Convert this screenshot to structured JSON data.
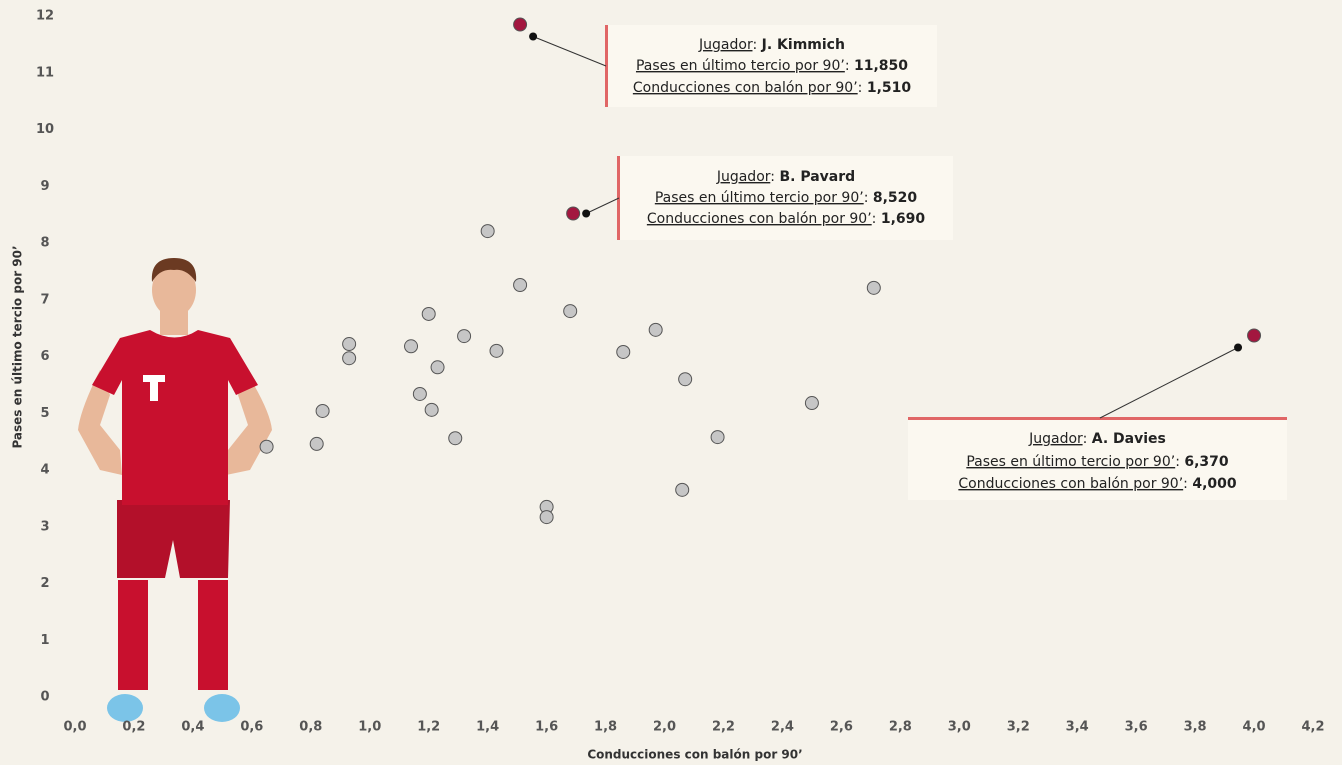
{
  "chart_data": {
    "type": "scatter",
    "x_label": "Conducciones con balón por 90’",
    "y_label": "Pases en último tercio por 90’",
    "xlim": [
      0,
      4.2
    ],
    "xticks": [
      {
        "value": 0,
        "label": "0,0"
      },
      {
        "value": 0.2,
        "label": "0,2"
      },
      {
        "value": 0.4,
        "label": "0,4"
      },
      {
        "value": 0.6,
        "label": "0,6"
      },
      {
        "value": 0.8,
        "label": "0,8"
      },
      {
        "value": 1,
        "label": "1,0"
      },
      {
        "value": 1.2,
        "label": "1,2"
      },
      {
        "value": 1.4,
        "label": "1,4"
      },
      {
        "value": 1.6,
        "label": "1,6"
      },
      {
        "value": 1.8,
        "label": "1,8"
      },
      {
        "value": 2,
        "label": "2,0"
      },
      {
        "value": 2.2,
        "label": "2,2"
      },
      {
        "value": 2.4,
        "label": "2,4"
      },
      {
        "value": 2.6,
        "label": "2,6"
      },
      {
        "value": 2.8,
        "label": "2,8"
      },
      {
        "value": 3,
        "label": "3,0"
      },
      {
        "value": 3.2,
        "label": "3,2"
      },
      {
        "value": 3.4,
        "label": "3,4"
      },
      {
        "value": 3.6,
        "label": "3,6"
      },
      {
        "value": 3.8,
        "label": "3,8"
      },
      {
        "value": 4,
        "label": "4,0"
      },
      {
        "value": 4.2,
        "label": "4,2"
      }
    ],
    "ylim": [
      0,
      12
    ],
    "yticks": [
      0,
      1,
      2,
      3,
      4,
      5,
      6,
      7,
      8,
      9,
      10,
      11,
      12
    ],
    "annotation_labels": {
      "player": "Jugador",
      "separator": ": ",
      "y": "Pases en último tercio por 90’",
      "x": "Conducciones con balón por 90’"
    },
    "series": [
      {
        "color": "#c6c6c6",
        "x": [
          0.65,
          0.82,
          0.84,
          0.93,
          0.93,
          1.14,
          1.2,
          1.17,
          1.21,
          1.23,
          1.29,
          1.32,
          1.4,
          1.43,
          1.51,
          1.6,
          1.6,
          1.68,
          1.86,
          1.97,
          2.07,
          2.06,
          2.18,
          2.5,
          2.71
        ],
        "values": [
          4.41,
          4.46,
          5.04,
          6.22,
          5.97,
          6.18,
          6.75,
          5.34,
          5.06,
          5.81,
          4.56,
          6.36,
          8.21,
          6.1,
          7.26,
          3.35,
          3.17,
          6.8,
          6.08,
          6.47,
          5.6,
          3.65,
          4.58,
          5.18,
          7.21
        ]
      },
      {
        "color": "#a3173f",
        "labels": [
          "J. Kimmich",
          "B. Pavard",
          "A. Davies"
        ],
        "x": [
          1.51,
          1.69,
          4.0
        ],
        "x_value_labels": [
          "1,510",
          "1,690",
          "4,000"
        ],
        "values": [
          11.85,
          8.52,
          6.37
        ],
        "value_labels": [
          "11,850",
          "8,520",
          "6,370"
        ]
      }
    ]
  }
}
